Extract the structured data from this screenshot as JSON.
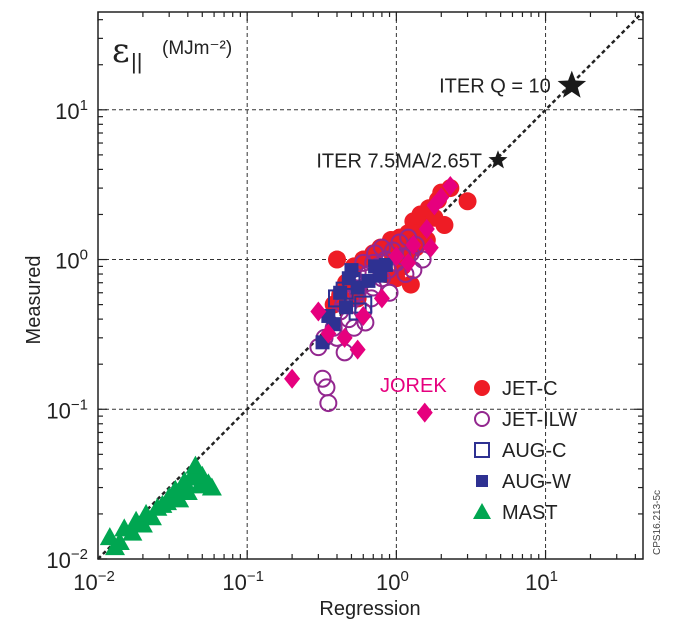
{
  "chart_data": {
    "type": "scatter",
    "xlabel": "Regression",
    "ylabel": "Measured",
    "quantity_symbol": "ε",
    "quantity_subscript": "||",
    "quantity_units": "(MJm⁻²)",
    "xscale": "log",
    "yscale": "log",
    "xlim": [
      0.01,
      45
    ],
    "ylim": [
      0.01,
      45
    ],
    "grid": true,
    "grid_style": "dashed",
    "x_ticks": [
      {
        "value": 0.01,
        "base": "10",
        "exp": "−2"
      },
      {
        "value": 0.1,
        "base": "10",
        "exp": "−1"
      },
      {
        "value": 1,
        "base": "10",
        "exp": "0"
      },
      {
        "value": 10,
        "base": "10",
        "exp": "1"
      }
    ],
    "y_ticks": [
      {
        "value": 0.01,
        "base": "10",
        "exp": "−2"
      },
      {
        "value": 0.1,
        "base": "10",
        "exp": "−1"
      },
      {
        "value": 1,
        "base": "10",
        "exp": "0"
      },
      {
        "value": 10,
        "base": "10",
        "exp": "1"
      }
    ],
    "identity_line": true,
    "legend_position": "bottom-right",
    "colors": {
      "jet_c": "#ee1c25",
      "jet_ilw": "#93278f",
      "aug": "#2e3192",
      "mast": "#00a651",
      "jorek": "#e6007e",
      "iter": "#1a1a1a"
    },
    "series": [
      {
        "name": "JET-C",
        "marker": "filled-circle",
        "color": "#ee1c25",
        "points": [
          [
            0.38,
            0.5
          ],
          [
            0.42,
            0.58
          ],
          [
            0.4,
            1.0
          ],
          [
            0.46,
            0.7
          ],
          [
            0.52,
            0.9
          ],
          [
            0.55,
            0.55
          ],
          [
            0.6,
            1.0
          ],
          [
            0.7,
            1.1
          ],
          [
            0.78,
            1.2
          ],
          [
            0.85,
            0.8
          ],
          [
            0.92,
            1.35
          ],
          [
            1.0,
            0.75
          ],
          [
            1.05,
            1.4
          ],
          [
            1.1,
            1.25
          ],
          [
            1.15,
            1.05
          ],
          [
            1.2,
            1.5
          ],
          [
            1.3,
            1.8
          ],
          [
            1.35,
            1.2
          ],
          [
            1.45,
            2.0
          ],
          [
            1.5,
            1.6
          ],
          [
            1.6,
            1.35
          ],
          [
            1.65,
            2.2
          ],
          [
            1.8,
            1.9
          ],
          [
            1.9,
            2.5
          ],
          [
            2.0,
            2.8
          ],
          [
            2.1,
            1.7
          ],
          [
            2.3,
            3.0
          ],
          [
            1.25,
            0.68
          ],
          [
            1.1,
            0.9
          ],
          [
            3.0,
            2.45
          ],
          [
            0.95,
            1.05
          ],
          [
            1.4,
            1.5
          ]
        ]
      },
      {
        "name": "JET-ILW",
        "marker": "open-circle",
        "color": "#93278f",
        "points": [
          [
            0.3,
            0.26
          ],
          [
            0.32,
            0.16
          ],
          [
            0.34,
            0.14
          ],
          [
            0.35,
            0.11
          ],
          [
            0.33,
            0.3
          ],
          [
            0.38,
            0.35
          ],
          [
            0.4,
            0.3
          ],
          [
            0.42,
            0.45
          ],
          [
            0.45,
            0.24
          ],
          [
            0.48,
            0.4
          ],
          [
            0.5,
            0.55
          ],
          [
            0.55,
            0.6
          ],
          [
            0.58,
            0.7
          ],
          [
            0.6,
            0.45
          ],
          [
            0.65,
            0.8
          ],
          [
            0.7,
            0.65
          ],
          [
            0.72,
            1.1
          ],
          [
            0.75,
            0.9
          ],
          [
            0.8,
            0.75
          ],
          [
            0.85,
            1.0
          ],
          [
            0.9,
            0.6
          ],
          [
            0.95,
            1.15
          ],
          [
            1.0,
            0.95
          ],
          [
            1.05,
            1.3
          ],
          [
            1.1,
            1.05
          ],
          [
            1.2,
            1.4
          ],
          [
            1.25,
            1.1
          ],
          [
            1.3,
            0.85
          ],
          [
            1.35,
            1.25
          ],
          [
            1.5,
            1.0
          ],
          [
            0.62,
            0.38
          ],
          [
            0.68,
            0.55
          ],
          [
            0.52,
            0.35
          ],
          [
            0.44,
            0.5
          ],
          [
            0.8,
            1.2
          ],
          [
            0.7,
            0.95
          ],
          [
            0.6,
            0.95
          ],
          [
            0.55,
            0.82
          ],
          [
            0.88,
            0.85
          ],
          [
            1.15,
            0.8
          ]
        ]
      },
      {
        "name": "AUG-C",
        "marker": "open-square",
        "color": "#2e3192",
        "points": [
          [
            0.4,
            0.55
          ],
          [
            0.45,
            0.62
          ],
          [
            0.55,
            0.45
          ],
          [
            0.5,
            0.72
          ],
          [
            0.6,
            0.5
          ]
        ]
      },
      {
        "name": "AUG-W",
        "marker": "filled-square",
        "color": "#2e3192",
        "points": [
          [
            0.32,
            0.28
          ],
          [
            0.35,
            0.42
          ],
          [
            0.38,
            0.37
          ],
          [
            0.42,
            0.6
          ],
          [
            0.46,
            0.48
          ],
          [
            0.5,
            0.85
          ],
          [
            0.55,
            0.65
          ],
          [
            0.65,
            0.72
          ],
          [
            0.72,
            0.9
          ],
          [
            0.78,
            0.78
          ],
          [
            0.85,
            0.92
          ],
          [
            0.48,
            0.75
          ]
        ]
      },
      {
        "name": "MAST",
        "marker": "triangle",
        "color": "#00a651",
        "points": [
          [
            0.012,
            0.014
          ],
          [
            0.013,
            0.012
          ],
          [
            0.014,
            0.013
          ],
          [
            0.015,
            0.016
          ],
          [
            0.017,
            0.015
          ],
          [
            0.018,
            0.018
          ],
          [
            0.02,
            0.017
          ],
          [
            0.021,
            0.02
          ],
          [
            0.023,
            0.019
          ],
          [
            0.025,
            0.022
          ],
          [
            0.027,
            0.023
          ],
          [
            0.03,
            0.026
          ],
          [
            0.033,
            0.029
          ],
          [
            0.036,
            0.03
          ],
          [
            0.038,
            0.033
          ],
          [
            0.04,
            0.028
          ],
          [
            0.042,
            0.035
          ],
          [
            0.045,
            0.038
          ],
          [
            0.048,
            0.031
          ],
          [
            0.05,
            0.036
          ],
          [
            0.055,
            0.032
          ],
          [
            0.058,
            0.03
          ],
          [
            0.045,
            0.042
          ],
          [
            0.035,
            0.025
          ],
          [
            0.029,
            0.024
          ]
        ]
      },
      {
        "name": "JOREK",
        "marker": "diamond",
        "color": "#e6007e",
        "points": [
          [
            0.2,
            0.16
          ],
          [
            0.3,
            0.45
          ],
          [
            0.35,
            0.32
          ],
          [
            0.45,
            0.3
          ],
          [
            0.55,
            0.25
          ],
          [
            0.6,
            0.42
          ],
          [
            0.8,
            0.55
          ],
          [
            1.0,
            1.05
          ],
          [
            1.3,
            1.25
          ],
          [
            1.6,
            1.6
          ],
          [
            1.8,
            2.3
          ],
          [
            2.0,
            2.6
          ],
          [
            2.3,
            3.1
          ],
          [
            1.7,
            1.2
          ],
          [
            1.2,
            0.95
          ],
          [
            1.55,
            0.095
          ]
        ]
      }
    ],
    "iter_points": [
      {
        "label": "ITER Q = 10",
        "x": 15,
        "y": 14.5,
        "size": "large"
      },
      {
        "label": "ITER 7.5MA/2.65T",
        "x": 4.8,
        "y": 4.6,
        "size": "small"
      }
    ],
    "legend": [
      {
        "label": "JET-C",
        "marker": "filled-circle",
        "color": "#ee1c25"
      },
      {
        "label": "JET-ILW",
        "marker": "open-circle",
        "color": "#93278f"
      },
      {
        "label": "AUG-C",
        "marker": "open-square",
        "color": "#2e3192"
      },
      {
        "label": "AUG-W",
        "marker": "filled-square",
        "color": "#2e3192"
      },
      {
        "label": "MAST",
        "marker": "triangle",
        "color": "#00a651"
      }
    ],
    "jorek_label": "JOREK",
    "figure_code": "CPS16.213-5c"
  }
}
